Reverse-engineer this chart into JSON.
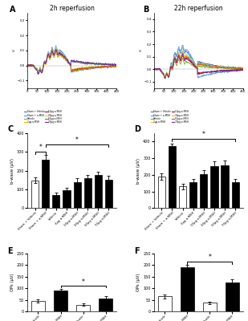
{
  "title_A": "2h reperfusion",
  "title_B": "22h reperfusion",
  "ylabel_bwave": "b-wave (μV)",
  "ylabel_ops": "OPs (μV)",
  "C_categories": [
    "Sham + Vehicle",
    "Sham + α-MSH",
    "Vehicle",
    "2μg α-MSH",
    "10μg α-MSH",
    "30μg α-MSH",
    "50μg α-MSH",
    "70μg α-MSH"
  ],
  "D_categories": [
    "Sham + Vehicle",
    "Sham + α-MSH",
    "Vehicle",
    "2μg α-MSH",
    "10μg α-MSH",
    "30μg α-MSH",
    "50μg α-MSH",
    "70μg α-MSH"
  ],
  "E_categories": [
    "Sham + Vehicle",
    "Sham + α-MSH",
    "Vehicle",
    "α-MSH"
  ],
  "F_categories": [
    "Sham + Vehicle",
    "Sham + α-MSH",
    "Vehicle",
    "α-MSH"
  ],
  "C_values": [
    148,
    260,
    70,
    95,
    140,
    160,
    175,
    153
  ],
  "D_values": [
    190,
    370,
    130,
    155,
    205,
    250,
    255,
    155
  ],
  "E_values": [
    45,
    90,
    28,
    55
  ],
  "F_values": [
    65,
    190,
    37,
    125
  ],
  "C_errors": [
    15,
    25,
    12,
    14,
    18,
    18,
    20,
    18
  ],
  "D_errors": [
    20,
    15,
    15,
    20,
    25,
    30,
    30,
    20
  ],
  "E_errors": [
    7,
    8,
    5,
    9
  ],
  "F_errors": [
    8,
    10,
    6,
    14
  ],
  "C_colors": [
    "white",
    "black",
    "black",
    "black",
    "black",
    "black",
    "black",
    "black"
  ],
  "D_colors": [
    "white",
    "black",
    "white",
    "black",
    "black",
    "black",
    "black",
    "black"
  ],
  "E_colors": [
    "white",
    "black",
    "white",
    "black"
  ],
  "F_colors": [
    "white",
    "black",
    "white",
    "black"
  ],
  "C_ylim": [
    0,
    400
  ],
  "D_ylim": [
    0,
    450
  ],
  "E_ylim": [
    0,
    250
  ],
  "F_ylim": [
    0,
    250
  ],
  "line_colors": [
    "#4472c4",
    "#5b9bd5",
    "#70ad47",
    "#ffc000",
    "#c00000",
    "#a9d18e",
    "#c55a11",
    "#7030a0"
  ],
  "legend_labels": [
    "Sham + Vehicle",
    "Sham + α-MSH",
    "Vehicle",
    "2μg α-MSH",
    "10μg α-MSH",
    "30μg α-MSH",
    "50μg α-MSH",
    "70μg α-MSH"
  ],
  "trace_A_ylim": [
    -0.15,
    0.35
  ],
  "trace_A_yticks": [
    -0.1,
    0.0,
    0.1,
    0.2,
    0.3
  ],
  "trace_B_ylim": [
    -0.15,
    0.45
  ],
  "trace_B_yticks": [
    -0.1,
    0.0,
    0.1,
    0.2,
    0.3,
    0.4
  ]
}
